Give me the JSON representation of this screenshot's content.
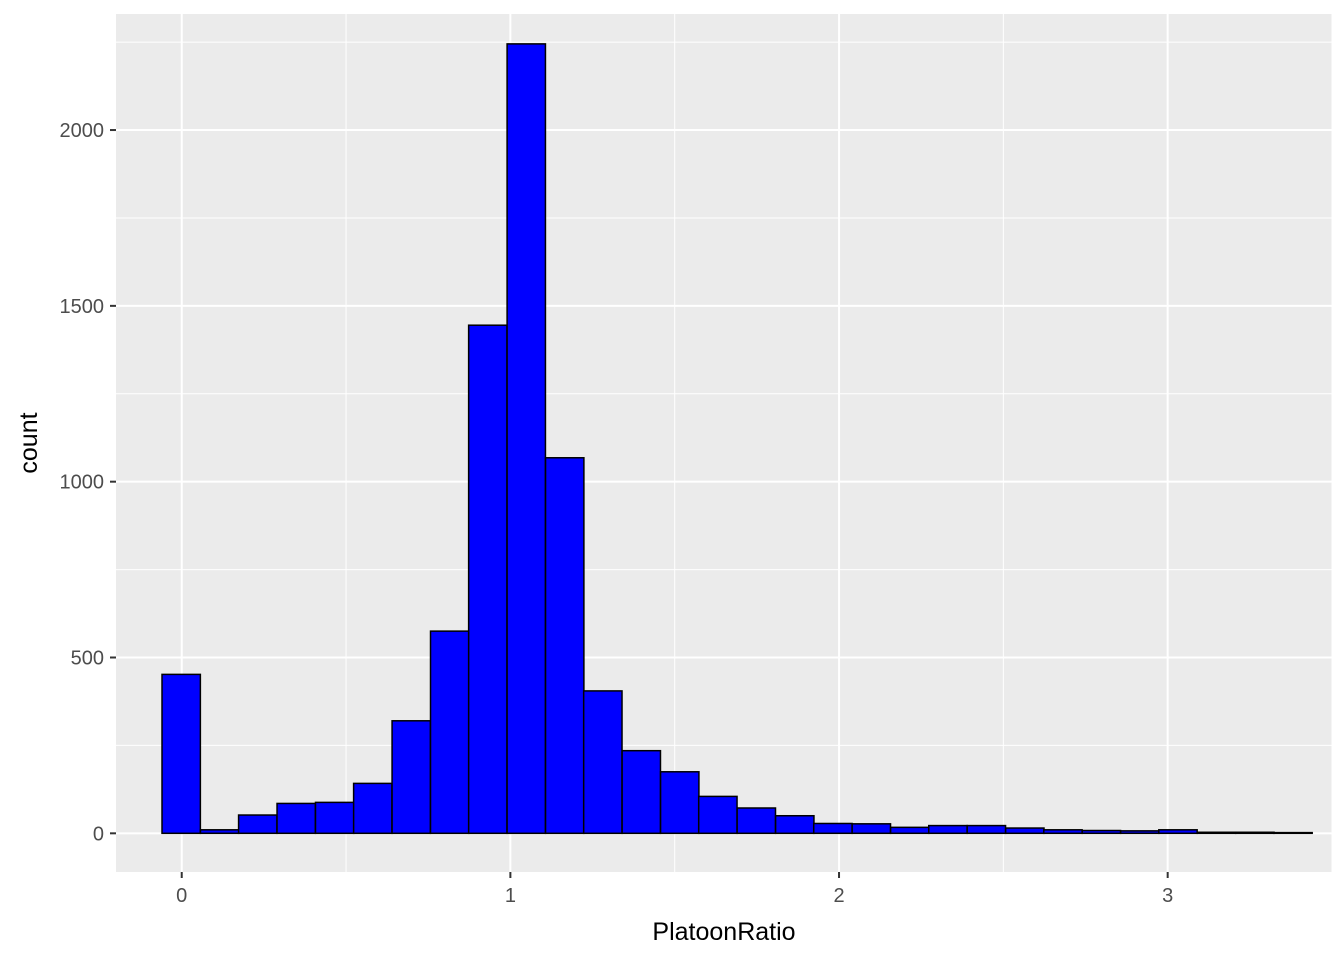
{
  "chart_data": {
    "type": "bar",
    "xlabel": "PlatoonRatio",
    "ylabel": "count",
    "xlim": [
      -0.2,
      3.5
    ],
    "ylim": [
      -110,
      2330
    ],
    "x_ticks": [
      0,
      1,
      2,
      3
    ],
    "x_tick_labels": [
      "0",
      "1",
      "2",
      "3"
    ],
    "y_ticks": [
      0,
      500,
      1000,
      1500,
      2000
    ],
    "y_tick_labels": [
      "0",
      "500",
      "1000",
      "1500",
      "2000"
    ],
    "grid": true,
    "bin_width": 0.1167,
    "bins": [
      {
        "start": -0.06,
        "count": 452
      },
      {
        "start": 0.057,
        "count": 10
      },
      {
        "start": 0.173,
        "count": 52
      },
      {
        "start": 0.29,
        "count": 85
      },
      {
        "start": 0.407,
        "count": 88
      },
      {
        "start": 0.523,
        "count": 142
      },
      {
        "start": 0.64,
        "count": 320
      },
      {
        "start": 0.757,
        "count": 575
      },
      {
        "start": 0.873,
        "count": 1445
      },
      {
        "start": 0.99,
        "count": 2245
      },
      {
        "start": 1.107,
        "count": 1068
      },
      {
        "start": 1.223,
        "count": 405
      },
      {
        "start": 1.34,
        "count": 235
      },
      {
        "start": 1.457,
        "count": 175
      },
      {
        "start": 1.573,
        "count": 105
      },
      {
        "start": 1.69,
        "count": 72
      },
      {
        "start": 1.807,
        "count": 50
      },
      {
        "start": 1.923,
        "count": 28
      },
      {
        "start": 2.04,
        "count": 27
      },
      {
        "start": 2.157,
        "count": 17
      },
      {
        "start": 2.273,
        "count": 22
      },
      {
        "start": 2.39,
        "count": 22
      },
      {
        "start": 2.507,
        "count": 15
      },
      {
        "start": 2.623,
        "count": 10
      },
      {
        "start": 2.74,
        "count": 8
      },
      {
        "start": 2.857,
        "count": 7
      },
      {
        "start": 2.973,
        "count": 10
      },
      {
        "start": 3.09,
        "count": 3
      },
      {
        "start": 3.207,
        "count": 3
      },
      {
        "start": 3.323,
        "count": 2
      }
    ],
    "fill_color": "#0000ff",
    "outline_color": "#000000",
    "panel_color": "#ebebeb",
    "grid_color": "#ffffff"
  }
}
